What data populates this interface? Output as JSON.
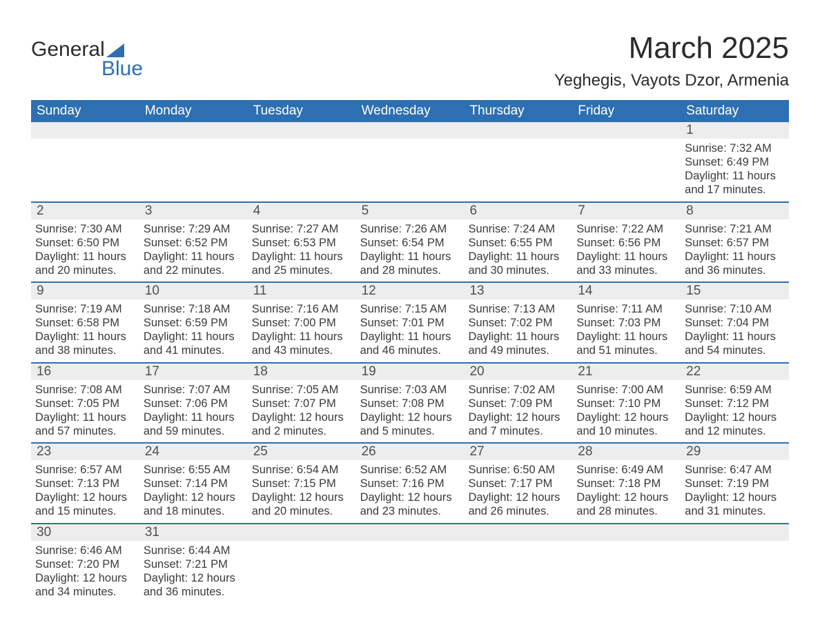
{
  "logo": {
    "word1": "General",
    "word2": "Blue",
    "tri_color": "#2d6fb0"
  },
  "header": {
    "month_title": "March 2025",
    "location": "Yeghegis, Vayots Dzor, Armenia"
  },
  "colors": {
    "header_bg": "#2d6fb0",
    "header_text": "#ffffff",
    "strip_bg": "#ededed",
    "row_border": "#2d6fb0",
    "body_text": "#3a3a3a",
    "page_bg": "#ffffff"
  },
  "typography": {
    "month_title_fontsize": 44,
    "location_fontsize": 24,
    "weekday_fontsize": 19,
    "daynum_fontsize": 19,
    "body_fontsize": 16.5,
    "font_family": "Arial"
  },
  "layout": {
    "columns": 7,
    "rows": 6,
    "cell_flex": "1 1 0"
  },
  "weekdays": [
    "Sunday",
    "Monday",
    "Tuesday",
    "Wednesday",
    "Thursday",
    "Friday",
    "Saturday"
  ],
  "weeks": [
    [
      {
        "day": "",
        "sunrise": "",
        "sunset": "",
        "daylight": ""
      },
      {
        "day": "",
        "sunrise": "",
        "sunset": "",
        "daylight": ""
      },
      {
        "day": "",
        "sunrise": "",
        "sunset": "",
        "daylight": ""
      },
      {
        "day": "",
        "sunrise": "",
        "sunset": "",
        "daylight": ""
      },
      {
        "day": "",
        "sunrise": "",
        "sunset": "",
        "daylight": ""
      },
      {
        "day": "",
        "sunrise": "",
        "sunset": "",
        "daylight": ""
      },
      {
        "day": "1",
        "sunrise": "Sunrise: 7:32 AM",
        "sunset": "Sunset: 6:49 PM",
        "daylight": "Daylight: 11 hours and 17 minutes."
      }
    ],
    [
      {
        "day": "2",
        "sunrise": "Sunrise: 7:30 AM",
        "sunset": "Sunset: 6:50 PM",
        "daylight": "Daylight: 11 hours and 20 minutes."
      },
      {
        "day": "3",
        "sunrise": "Sunrise: 7:29 AM",
        "sunset": "Sunset: 6:52 PM",
        "daylight": "Daylight: 11 hours and 22 minutes."
      },
      {
        "day": "4",
        "sunrise": "Sunrise: 7:27 AM",
        "sunset": "Sunset: 6:53 PM",
        "daylight": "Daylight: 11 hours and 25 minutes."
      },
      {
        "day": "5",
        "sunrise": "Sunrise: 7:26 AM",
        "sunset": "Sunset: 6:54 PM",
        "daylight": "Daylight: 11 hours and 28 minutes."
      },
      {
        "day": "6",
        "sunrise": "Sunrise: 7:24 AM",
        "sunset": "Sunset: 6:55 PM",
        "daylight": "Daylight: 11 hours and 30 minutes."
      },
      {
        "day": "7",
        "sunrise": "Sunrise: 7:22 AM",
        "sunset": "Sunset: 6:56 PM",
        "daylight": "Daylight: 11 hours and 33 minutes."
      },
      {
        "day": "8",
        "sunrise": "Sunrise: 7:21 AM",
        "sunset": "Sunset: 6:57 PM",
        "daylight": "Daylight: 11 hours and 36 minutes."
      }
    ],
    [
      {
        "day": "9",
        "sunrise": "Sunrise: 7:19 AM",
        "sunset": "Sunset: 6:58 PM",
        "daylight": "Daylight: 11 hours and 38 minutes."
      },
      {
        "day": "10",
        "sunrise": "Sunrise: 7:18 AM",
        "sunset": "Sunset: 6:59 PM",
        "daylight": "Daylight: 11 hours and 41 minutes."
      },
      {
        "day": "11",
        "sunrise": "Sunrise: 7:16 AM",
        "sunset": "Sunset: 7:00 PM",
        "daylight": "Daylight: 11 hours and 43 minutes."
      },
      {
        "day": "12",
        "sunrise": "Sunrise: 7:15 AM",
        "sunset": "Sunset: 7:01 PM",
        "daylight": "Daylight: 11 hours and 46 minutes."
      },
      {
        "day": "13",
        "sunrise": "Sunrise: 7:13 AM",
        "sunset": "Sunset: 7:02 PM",
        "daylight": "Daylight: 11 hours and 49 minutes."
      },
      {
        "day": "14",
        "sunrise": "Sunrise: 7:11 AM",
        "sunset": "Sunset: 7:03 PM",
        "daylight": "Daylight: 11 hours and 51 minutes."
      },
      {
        "day": "15",
        "sunrise": "Sunrise: 7:10 AM",
        "sunset": "Sunset: 7:04 PM",
        "daylight": "Daylight: 11 hours and 54 minutes."
      }
    ],
    [
      {
        "day": "16",
        "sunrise": "Sunrise: 7:08 AM",
        "sunset": "Sunset: 7:05 PM",
        "daylight": "Daylight: 11 hours and 57 minutes."
      },
      {
        "day": "17",
        "sunrise": "Sunrise: 7:07 AM",
        "sunset": "Sunset: 7:06 PM",
        "daylight": "Daylight: 11 hours and 59 minutes."
      },
      {
        "day": "18",
        "sunrise": "Sunrise: 7:05 AM",
        "sunset": "Sunset: 7:07 PM",
        "daylight": "Daylight: 12 hours and 2 minutes."
      },
      {
        "day": "19",
        "sunrise": "Sunrise: 7:03 AM",
        "sunset": "Sunset: 7:08 PM",
        "daylight": "Daylight: 12 hours and 5 minutes."
      },
      {
        "day": "20",
        "sunrise": "Sunrise: 7:02 AM",
        "sunset": "Sunset: 7:09 PM",
        "daylight": "Daylight: 12 hours and 7 minutes."
      },
      {
        "day": "21",
        "sunrise": "Sunrise: 7:00 AM",
        "sunset": "Sunset: 7:10 PM",
        "daylight": "Daylight: 12 hours and 10 minutes."
      },
      {
        "day": "22",
        "sunrise": "Sunrise: 6:59 AM",
        "sunset": "Sunset: 7:12 PM",
        "daylight": "Daylight: 12 hours and 12 minutes."
      }
    ],
    [
      {
        "day": "23",
        "sunrise": "Sunrise: 6:57 AM",
        "sunset": "Sunset: 7:13 PM",
        "daylight": "Daylight: 12 hours and 15 minutes."
      },
      {
        "day": "24",
        "sunrise": "Sunrise: 6:55 AM",
        "sunset": "Sunset: 7:14 PM",
        "daylight": "Daylight: 12 hours and 18 minutes."
      },
      {
        "day": "25",
        "sunrise": "Sunrise: 6:54 AM",
        "sunset": "Sunset: 7:15 PM",
        "daylight": "Daylight: 12 hours and 20 minutes."
      },
      {
        "day": "26",
        "sunrise": "Sunrise: 6:52 AM",
        "sunset": "Sunset: 7:16 PM",
        "daylight": "Daylight: 12 hours and 23 minutes."
      },
      {
        "day": "27",
        "sunrise": "Sunrise: 6:50 AM",
        "sunset": "Sunset: 7:17 PM",
        "daylight": "Daylight: 12 hours and 26 minutes."
      },
      {
        "day": "28",
        "sunrise": "Sunrise: 6:49 AM",
        "sunset": "Sunset: 7:18 PM",
        "daylight": "Daylight: 12 hours and 28 minutes."
      },
      {
        "day": "29",
        "sunrise": "Sunrise: 6:47 AM",
        "sunset": "Sunset: 7:19 PM",
        "daylight": "Daylight: 12 hours and 31 minutes."
      }
    ],
    [
      {
        "day": "30",
        "sunrise": "Sunrise: 6:46 AM",
        "sunset": "Sunset: 7:20 PM",
        "daylight": "Daylight: 12 hours and 34 minutes."
      },
      {
        "day": "31",
        "sunrise": "Sunrise: 6:44 AM",
        "sunset": "Sunset: 7:21 PM",
        "daylight": "Daylight: 12 hours and 36 minutes."
      },
      {
        "day": "",
        "sunrise": "",
        "sunset": "",
        "daylight": ""
      },
      {
        "day": "",
        "sunrise": "",
        "sunset": "",
        "daylight": ""
      },
      {
        "day": "",
        "sunrise": "",
        "sunset": "",
        "daylight": ""
      },
      {
        "day": "",
        "sunrise": "",
        "sunset": "",
        "daylight": ""
      },
      {
        "day": "",
        "sunrise": "",
        "sunset": "",
        "daylight": ""
      }
    ]
  ]
}
